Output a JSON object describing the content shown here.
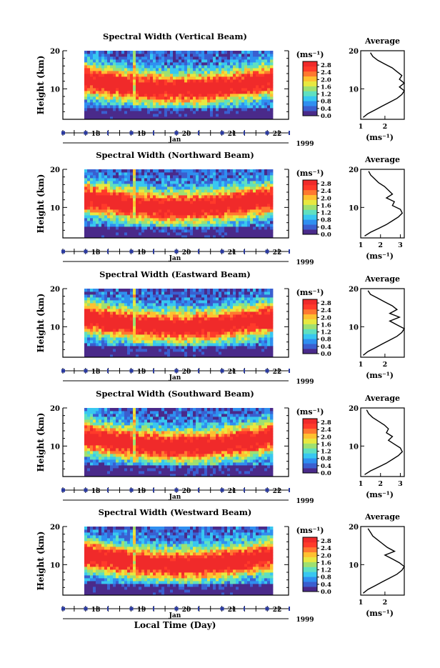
{
  "figure": {
    "xlabel": "Local Time (Day)",
    "month_label": "Jan",
    "year_label": "1999",
    "ylabel": "Height (km)",
    "colorbar_unit": "(ms⁻¹)",
    "avg_title": "Average",
    "avg_unit": "(ms⁻¹)"
  },
  "colors": {
    "scale": [
      "#4a2a8a",
      "#3a5fd0",
      "#2f8ff0",
      "#38c7f0",
      "#5fe0c0",
      "#9fe070",
      "#e8e840",
      "#ffc030",
      "#ff7830",
      "#ff3a2a",
      "#f02a2a"
    ]
  },
  "chart_data": [
    {
      "type": "heatmap",
      "title": "Spectral Width (Vertical Beam)",
      "x_ticks": [
        "18",
        "19",
        "20",
        "21",
        "22"
      ],
      "y_ticks": [
        "10",
        "20"
      ],
      "y_range_km": [
        2,
        20
      ],
      "colorbar_ticks": [
        "2.8",
        "2.4",
        "2.0",
        "1.6",
        "1.2",
        "0.8",
        "0.4",
        "0.0"
      ],
      "colorbar_range": [
        0,
        3.0
      ],
      "average_profile": {
        "x_ticks": [
          "1",
          "2"
        ],
        "x_range": [
          1,
          2.8
        ],
        "height_km": [
          2.5,
          3.5,
          4.5,
          5.5,
          6.5,
          7.5,
          8.5,
          9.5,
          10.5,
          11.5,
          12.5,
          13.5,
          14.5,
          15.5,
          16.5,
          17.5,
          18.5,
          19.5
        ],
        "value": [
          1.1,
          1.3,
          1.6,
          1.9,
          2.2,
          2.5,
          2.7,
          2.8,
          2.6,
          2.8,
          2.6,
          2.7,
          2.5,
          2.3,
          2.0,
          1.7,
          1.5,
          1.4
        ]
      }
    },
    {
      "type": "heatmap",
      "title": "Spectral Width (Northward Beam)",
      "x_ticks": [
        "18",
        "19",
        "20",
        "21",
        "22"
      ],
      "y_ticks": [
        "10",
        "20"
      ],
      "y_range_km": [
        2,
        20
      ],
      "colorbar_ticks": [
        "2.8",
        "2.4",
        "2.0",
        "1.6",
        "1.2",
        "0.8",
        "0.4",
        "0.0"
      ],
      "colorbar_range": [
        0,
        3.0
      ],
      "average_profile": {
        "x_ticks": [
          "1",
          "2",
          "3"
        ],
        "x_range": [
          1,
          3.2
        ],
        "height_km": [
          2.5,
          3.5,
          4.5,
          5.5,
          6.5,
          7.5,
          8.5,
          9.5,
          10.5,
          11.5,
          12.5,
          13.5,
          14.5,
          15.5,
          16.5,
          17.5,
          18.5,
          19.5
        ],
        "value": [
          1.2,
          1.5,
          1.9,
          2.3,
          2.6,
          2.9,
          3.1,
          3.0,
          2.6,
          2.7,
          2.3,
          2.6,
          2.4,
          2.2,
          1.9,
          1.7,
          1.5,
          1.4
        ]
      }
    },
    {
      "type": "heatmap",
      "title": "Spectral Width (Eastward Beam)",
      "x_ticks": [
        "18",
        "19",
        "20",
        "21",
        "22"
      ],
      "y_ticks": [
        "10",
        "20"
      ],
      "y_range_km": [
        2,
        20
      ],
      "colorbar_ticks": [
        "2.8",
        "2.4",
        "2.0",
        "1.6",
        "1.2",
        "0.8",
        "0.4",
        "0.0"
      ],
      "colorbar_range": [
        0,
        3.0
      ],
      "average_profile": {
        "x_ticks": [
          "1",
          "2"
        ],
        "x_range": [
          1,
          2.8
        ],
        "height_km": [
          2.5,
          3.5,
          4.5,
          5.5,
          6.5,
          7.5,
          8.5,
          9.5,
          10.5,
          11.5,
          12.5,
          13.5,
          14.5,
          15.5,
          16.5,
          17.5,
          18.5,
          19.5
        ],
        "value": [
          1.1,
          1.3,
          1.6,
          1.9,
          2.2,
          2.5,
          2.7,
          2.8,
          2.5,
          2.2,
          2.6,
          2.2,
          2.5,
          2.3,
          2.0,
          1.7,
          1.4,
          1.3
        ]
      }
    },
    {
      "type": "heatmap",
      "title": "Spectral Width (Southward Beam)",
      "x_ticks": [
        "18",
        "19",
        "20",
        "21",
        "22"
      ],
      "y_ticks": [
        "10",
        "20"
      ],
      "y_range_km": [
        2,
        20
      ],
      "colorbar_ticks": [
        "2.8",
        "2.4",
        "2.0",
        "1.6",
        "1.2",
        "0.8",
        "0.4",
        "0.0"
      ],
      "colorbar_range": [
        0,
        3.0
      ],
      "average_profile": {
        "x_ticks": [
          "1",
          "2",
          "3"
        ],
        "x_range": [
          1,
          3.2
        ],
        "height_km": [
          2.5,
          3.5,
          4.5,
          5.5,
          6.5,
          7.5,
          8.5,
          9.5,
          10.5,
          11.5,
          12.5,
          13.5,
          14.5,
          15.5,
          16.5,
          17.5,
          18.5,
          19.5
        ],
        "value": [
          1.2,
          1.5,
          1.9,
          2.3,
          2.6,
          2.9,
          3.1,
          3.0,
          2.7,
          2.4,
          2.6,
          2.3,
          2.4,
          2.2,
          1.9,
          1.6,
          1.4,
          1.3
        ]
      }
    },
    {
      "type": "heatmap",
      "title": "Spectral Width (Westward Beam)",
      "x_ticks": [
        "18",
        "19",
        "20",
        "21",
        "22"
      ],
      "y_ticks": [
        "10",
        "20"
      ],
      "y_range_km": [
        2,
        20
      ],
      "colorbar_ticks": [
        "2.8",
        "2.4",
        "2.0",
        "1.6",
        "1.2",
        "0.8",
        "0.4",
        "0.0"
      ],
      "colorbar_range": [
        0,
        3.0
      ],
      "average_profile": {
        "x_ticks": [
          "1",
          "2"
        ],
        "x_range": [
          1,
          2.8
        ],
        "height_km": [
          2.5,
          3.5,
          4.5,
          5.5,
          6.5,
          7.5,
          8.5,
          9.5,
          10.5,
          11.5,
          12.5,
          13.5,
          14.5,
          15.5,
          16.5,
          17.5,
          18.5,
          19.5
        ],
        "value": [
          1.1,
          1.3,
          1.6,
          1.9,
          2.2,
          2.5,
          2.7,
          2.8,
          2.6,
          2.3,
          2.0,
          2.4,
          2.1,
          1.9,
          1.7,
          1.5,
          1.4,
          1.3
        ]
      }
    }
  ]
}
